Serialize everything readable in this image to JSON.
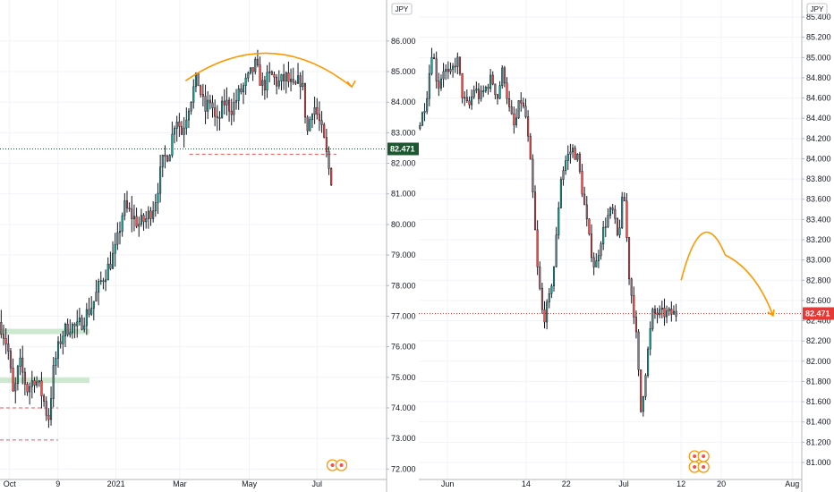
{
  "colors": {
    "up": "#26a69a",
    "down": "#ef5350",
    "wick": "#131722",
    "grid": "#f0f3fa",
    "axis_line": "#b2b5be",
    "arrow": "#ff9800",
    "left_tag": "#1e5631",
    "right_tag": "#e53935",
    "support_zone": "#c8e6c9",
    "support_dashed": "#ef5350"
  },
  "chart_data": [
    {
      "type": "candlestick",
      "panel": "left",
      "currency": "JPY",
      "last_price": "82.471",
      "y_ticks": [
        "86.000",
        "85.000",
        "84.000",
        "83.000",
        "82.000",
        "81.000",
        "80.000",
        "79.000",
        "78.000",
        "77.000",
        "76.000",
        "75.000",
        "74.000",
        "73.000",
        "72.000"
      ],
      "ylim": [
        71.95,
        87.05
      ],
      "x_ticks": [
        "Oct",
        "9",
        "2021",
        "Mar",
        "May",
        "Jul"
      ],
      "x_tick_positions": [
        0.025,
        0.15,
        0.3,
        0.465,
        0.645,
        0.82
      ],
      "series": {
        "name": "",
        "close_path": [
          [
            0.0,
            76.8
          ],
          [
            0.02,
            76.0
          ],
          [
            0.035,
            74.3
          ],
          [
            0.05,
            75.5
          ],
          [
            0.07,
            74.6
          ],
          [
            0.09,
            75.0
          ],
          [
            0.11,
            74.4
          ],
          [
            0.125,
            73.6
          ],
          [
            0.14,
            75.4
          ],
          [
            0.16,
            76.4
          ],
          [
            0.18,
            76.7
          ],
          [
            0.2,
            76.6
          ],
          [
            0.22,
            77.0
          ],
          [
            0.24,
            77.4
          ],
          [
            0.26,
            78.1
          ],
          [
            0.28,
            78.6
          ],
          [
            0.3,
            79.2
          ],
          [
            0.32,
            80.6
          ],
          [
            0.34,
            80.3
          ],
          [
            0.36,
            80.0
          ],
          [
            0.38,
            80.2
          ],
          [
            0.4,
            80.7
          ],
          [
            0.42,
            82.0
          ],
          [
            0.44,
            82.5
          ],
          [
            0.455,
            83.6
          ],
          [
            0.47,
            83.0
          ],
          [
            0.49,
            84.0
          ],
          [
            0.51,
            84.8
          ],
          [
            0.53,
            83.7
          ],
          [
            0.545,
            84.1
          ],
          [
            0.56,
            83.2
          ],
          [
            0.58,
            84.0
          ],
          [
            0.6,
            83.8
          ],
          [
            0.62,
            84.3
          ],
          [
            0.64,
            84.7
          ],
          [
            0.66,
            85.2
          ],
          [
            0.68,
            84.5
          ],
          [
            0.7,
            84.9
          ],
          [
            0.72,
            84.6
          ],
          [
            0.74,
            84.8
          ],
          [
            0.76,
            84.4
          ],
          [
            0.78,
            84.8
          ],
          [
            0.795,
            83.0
          ],
          [
            0.81,
            84.0
          ],
          [
            0.825,
            83.4
          ],
          [
            0.84,
            82.6
          ],
          [
            0.855,
            81.5
          ]
        ]
      },
      "annotations": {
        "resistance_arc": "",
        "support_dashed_level": 82.3,
        "green_zones": [
          76.5,
          74.9
        ]
      }
    },
    {
      "type": "candlestick",
      "panel": "right",
      "currency": "JPY",
      "last_price": "82.471",
      "y_ticks": [
        "85.400",
        "85.200",
        "85.000",
        "84.800",
        "84.600",
        "84.400",
        "84.200",
        "84.000",
        "83.800",
        "83.600",
        "83.400",
        "83.200",
        "83.000",
        "82.800",
        "82.600",
        "82.400",
        "82.200",
        "82.000",
        "81.800",
        "81.600",
        "81.400",
        "81.200",
        "81.000"
      ],
      "ylim": [
        80.92,
        85.48
      ],
      "x_ticks": [
        "Jun",
        "14",
        "22",
        "Jul",
        "12",
        "20",
        "Aug"
      ],
      "x_tick_positions": [
        0.075,
        0.28,
        0.385,
        0.535,
        0.685,
        0.79,
        0.975
      ],
      "series": {
        "name": "",
        "close_path": [
          [
            0.0,
            84.3
          ],
          [
            0.02,
            84.6
          ],
          [
            0.035,
            85.1
          ],
          [
            0.05,
            84.7
          ],
          [
            0.065,
            84.9
          ],
          [
            0.08,
            84.8
          ],
          [
            0.1,
            85.0
          ],
          [
            0.115,
            84.6
          ],
          [
            0.13,
            84.5
          ],
          [
            0.145,
            84.7
          ],
          [
            0.16,
            84.6
          ],
          [
            0.175,
            84.7
          ],
          [
            0.19,
            84.8
          ],
          [
            0.205,
            84.6
          ],
          [
            0.22,
            84.9
          ],
          [
            0.235,
            84.5
          ],
          [
            0.25,
            84.3
          ],
          [
            0.265,
            84.6
          ],
          [
            0.28,
            84.4
          ],
          [
            0.295,
            83.8
          ],
          [
            0.31,
            82.9
          ],
          [
            0.325,
            82.4
          ],
          [
            0.34,
            82.6
          ],
          [
            0.355,
            83.0
          ],
          [
            0.37,
            83.8
          ],
          [
            0.385,
            84.0
          ],
          [
            0.4,
            84.1
          ],
          [
            0.415,
            84.0
          ],
          [
            0.43,
            83.6
          ],
          [
            0.445,
            83.2
          ],
          [
            0.46,
            82.9
          ],
          [
            0.475,
            83.2
          ],
          [
            0.49,
            83.4
          ],
          [
            0.505,
            83.5
          ],
          [
            0.52,
            83.2
          ],
          [
            0.535,
            83.7
          ],
          [
            0.55,
            82.8
          ],
          [
            0.565,
            82.4
          ],
          [
            0.58,
            81.5
          ],
          [
            0.595,
            82.0
          ],
          [
            0.61,
            82.47
          ]
        ]
      },
      "annotations": {
        "forecast_arc": "",
        "price_line": 82.471
      }
    }
  ]
}
